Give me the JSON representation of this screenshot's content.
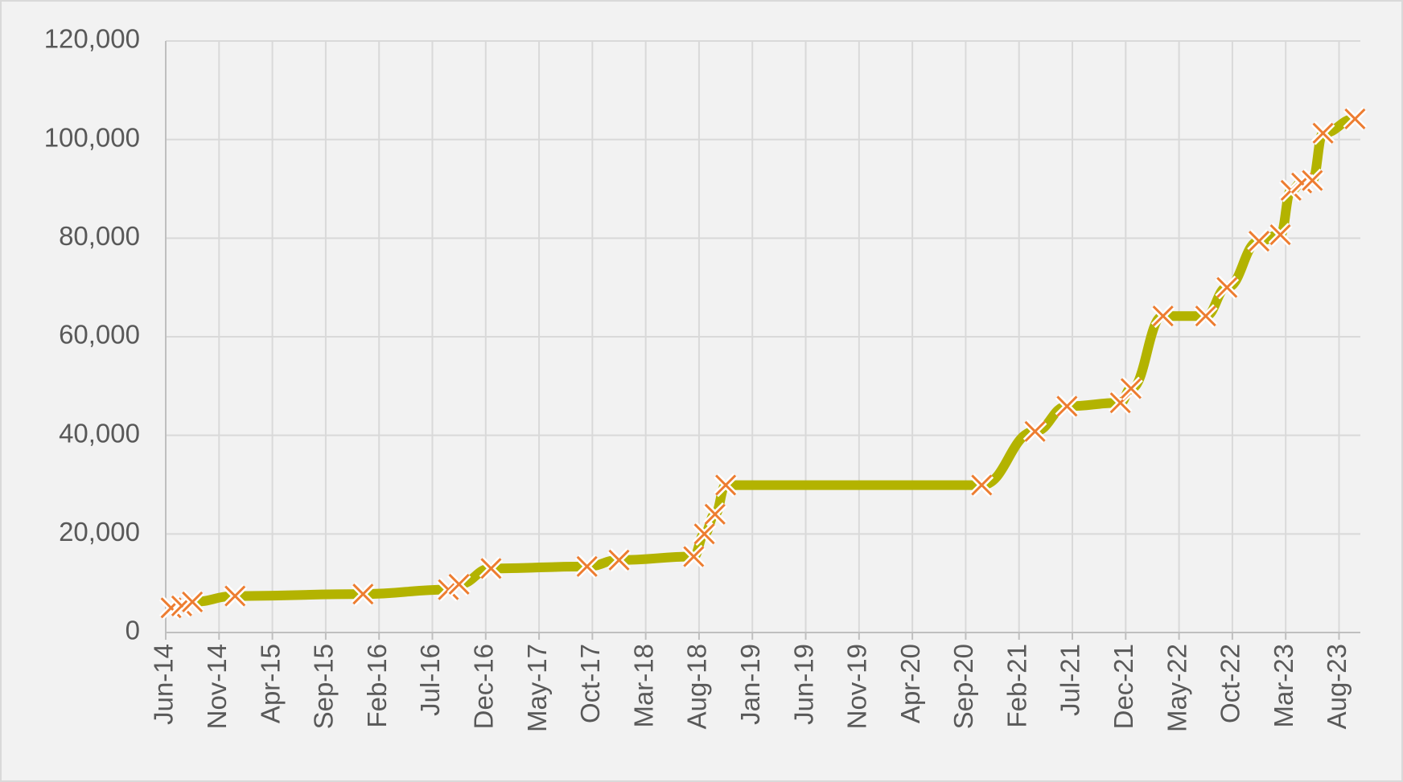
{
  "chart_data": {
    "type": "line",
    "x": [
      "2014-06",
      "2014-07",
      "2014-08",
      "2014-12",
      "2015-12",
      "2016-08",
      "2016-09",
      "2016-12",
      "2017-09",
      "2017-12",
      "2018-07",
      "2018-08",
      "2018-09",
      "2018-10",
      "2020-10",
      "2021-03",
      "2021-06",
      "2021-11",
      "2021-12",
      "2022-03",
      "2022-07",
      "2022-09",
      "2022-12",
      "2023-02",
      "2023-03",
      "2023-04",
      "2023-05",
      "2023-06",
      "2023-09"
    ],
    "values": [
      5000,
      5400,
      6200,
      7400,
      7800,
      8700,
      9800,
      13000,
      13400,
      14700,
      15400,
      20000,
      24000,
      29900,
      29900,
      40800,
      45900,
      46600,
      49500,
      64200,
      64200,
      70000,
      79400,
      80700,
      89700,
      91200,
      91700,
      101300,
      104200
    ],
    "color": "#b3b300",
    "marker_color": "#ed7d31",
    "xlim": [
      "2014-06",
      "2023-10"
    ],
    "xticks": [
      {
        "value": "2014-06",
        "label": "Jun-14"
      },
      {
        "value": "2014-11",
        "label": "Nov-14"
      },
      {
        "value": "2015-04",
        "label": "Apr-15"
      },
      {
        "value": "2015-09",
        "label": "Sep-15"
      },
      {
        "value": "2016-02",
        "label": "Feb-16"
      },
      {
        "value": "2016-07",
        "label": "Jul-16"
      },
      {
        "value": "2016-12",
        "label": "Dec-16"
      },
      {
        "value": "2017-05",
        "label": "May-17"
      },
      {
        "value": "2017-10",
        "label": "Oct-17"
      },
      {
        "value": "2018-03",
        "label": "Mar-18"
      },
      {
        "value": "2018-08",
        "label": "Aug-18"
      },
      {
        "value": "2019-01",
        "label": "Jan-19"
      },
      {
        "value": "2019-06",
        "label": "Jun-19"
      },
      {
        "value": "2019-11",
        "label": "Nov-19"
      },
      {
        "value": "2020-04",
        "label": "Apr-20"
      },
      {
        "value": "2020-09",
        "label": "Sep-20"
      },
      {
        "value": "2021-02",
        "label": "Feb-21"
      },
      {
        "value": "2021-07",
        "label": "Jul-21"
      },
      {
        "value": "2021-12",
        "label": "Dec-21"
      },
      {
        "value": "2022-05",
        "label": "May-22"
      },
      {
        "value": "2022-10",
        "label": "Oct-22"
      },
      {
        "value": "2023-03",
        "label": "Mar-23"
      },
      {
        "value": "2023-08",
        "label": "Aug-23"
      }
    ],
    "ylim": [
      0,
      120000
    ],
    "yticks": [
      0,
      {
        "value": 20000,
        "label": "20,000"
      },
      {
        "value": 40000,
        "label": "40,000"
      },
      {
        "value": 60000,
        "label": "60,000"
      },
      {
        "value": 80000,
        "label": "80,000"
      },
      {
        "value": 100000,
        "label": "100,000"
      },
      {
        "value": 120000,
        "label": "120,000"
      }
    ],
    "grid": true
  }
}
